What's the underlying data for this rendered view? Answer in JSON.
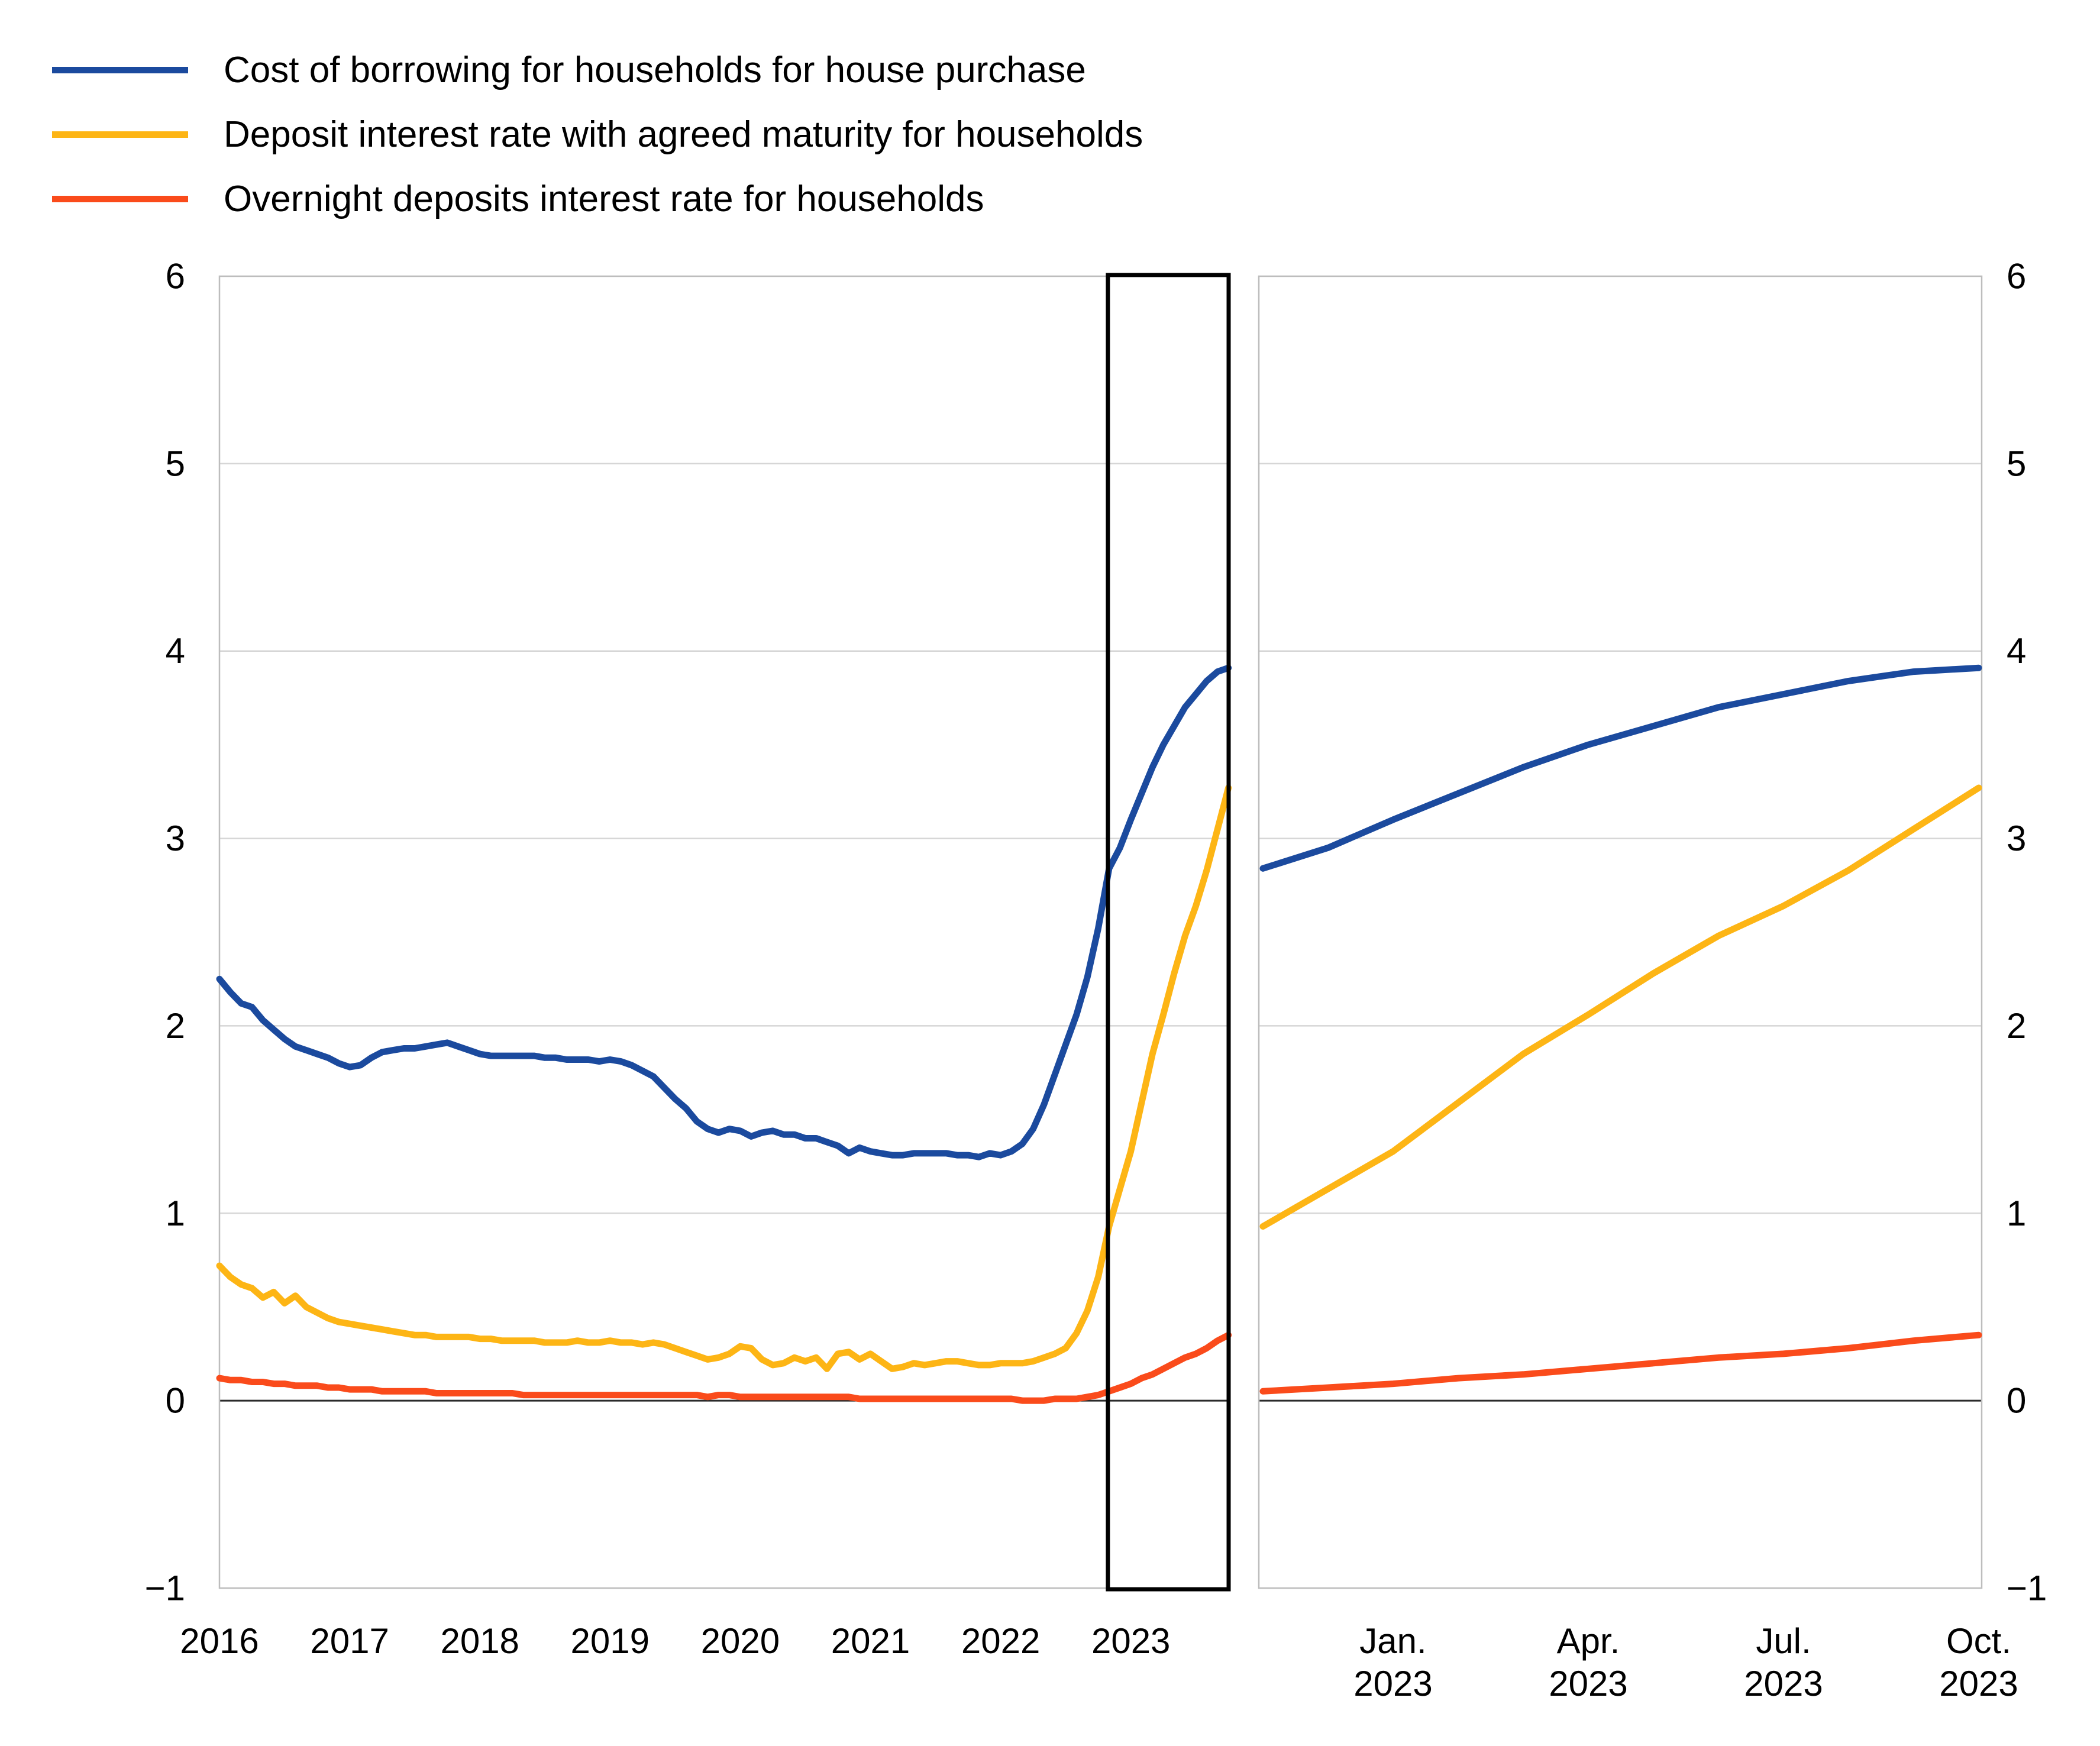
{
  "legend": {
    "items": [
      {
        "label": "Cost of borrowing for households for house purchase",
        "color": "#1b4a9e",
        "icon": "line-swatch"
      },
      {
        "label": "Deposit interest rate with agreed maturity for households",
        "color": "#fdb515",
        "icon": "line-swatch"
      },
      {
        "label": "Overnight deposits interest rate for households",
        "color": "#fa4b1b",
        "icon": "line-swatch"
      }
    ]
  },
  "chart_data": {
    "type": "line",
    "title": "",
    "xlabel": "",
    "ylabel": "",
    "ylim": [
      -1,
      6
    ],
    "yticks": [
      6,
      5,
      4,
      3,
      2,
      1,
      0,
      -1
    ],
    "grid": "horizontal",
    "legend_position": "top-left",
    "colors": {
      "grid": "#d6d6d6",
      "border": "#bdbdbd",
      "zero_line": "#2b2b2b",
      "highlight_box": "#000000"
    },
    "panels": [
      {
        "name": "history-2016-2023",
        "x_tick_labels": [
          "2016",
          "2017",
          "2018",
          "2019",
          "2020",
          "2021",
          "2022",
          "2023"
        ],
        "months_start": "2016-01",
        "months_end": "2023-10",
        "highlight_box": {
          "from": "Nov. 2022",
          "to": "Oct. 2023"
        },
        "series": [
          {
            "name": "Cost of borrowing for households for house purchase",
            "color": "#1b4a9e",
            "values": [
              2.25,
              2.18,
              2.12,
              2.1,
              2.03,
              1.98,
              1.93,
              1.89,
              1.87,
              1.85,
              1.83,
              1.8,
              1.78,
              1.79,
              1.83,
              1.86,
              1.87,
              1.88,
              1.88,
              1.89,
              1.9,
              1.91,
              1.89,
              1.87,
              1.85,
              1.84,
              1.84,
              1.84,
              1.84,
              1.84,
              1.83,
              1.83,
              1.82,
              1.82,
              1.82,
              1.81,
              1.82,
              1.81,
              1.79,
              1.76,
              1.73,
              1.67,
              1.61,
              1.56,
              1.49,
              1.45,
              1.43,
              1.45,
              1.44,
              1.41,
              1.43,
              1.44,
              1.42,
              1.42,
              1.4,
              1.4,
              1.38,
              1.36,
              1.32,
              1.35,
              1.33,
              1.32,
              1.31,
              1.31,
              1.32,
              1.32,
              1.32,
              1.32,
              1.31,
              1.31,
              1.3,
              1.32,
              1.31,
              1.33,
              1.37,
              1.45,
              1.58,
              1.74,
              1.9,
              2.06,
              2.26,
              2.52,
              2.84,
              2.95,
              3.1,
              3.24,
              3.38,
              3.5,
              3.6,
              3.7,
              3.77,
              3.84,
              3.89,
              3.91
            ]
          },
          {
            "name": "Deposit interest rate with agreed maturity for households",
            "color": "#fdb515",
            "values": [
              0.72,
              0.66,
              0.62,
              0.6,
              0.55,
              0.58,
              0.52,
              0.56,
              0.5,
              0.47,
              0.44,
              0.42,
              0.41,
              0.4,
              0.39,
              0.38,
              0.37,
              0.36,
              0.35,
              0.35,
              0.34,
              0.34,
              0.34,
              0.34,
              0.33,
              0.33,
              0.32,
              0.32,
              0.32,
              0.32,
              0.31,
              0.31,
              0.31,
              0.32,
              0.31,
              0.31,
              0.32,
              0.31,
              0.31,
              0.3,
              0.31,
              0.3,
              0.28,
              0.26,
              0.24,
              0.22,
              0.23,
              0.25,
              0.29,
              0.28,
              0.22,
              0.19,
              0.2,
              0.23,
              0.21,
              0.23,
              0.17,
              0.25,
              0.26,
              0.22,
              0.25,
              0.21,
              0.17,
              0.18,
              0.2,
              0.19,
              0.2,
              0.21,
              0.21,
              0.2,
              0.19,
              0.19,
              0.2,
              0.2,
              0.2,
              0.21,
              0.23,
              0.25,
              0.28,
              0.36,
              0.48,
              0.66,
              0.93,
              1.13,
              1.33,
              1.59,
              1.85,
              2.06,
              2.28,
              2.48,
              2.64,
              2.83,
              3.05,
              3.27
            ]
          },
          {
            "name": "Overnight deposits interest rate for households",
            "color": "#fa4b1b",
            "values": [
              0.12,
              0.11,
              0.11,
              0.1,
              0.1,
              0.09,
              0.09,
              0.08,
              0.08,
              0.08,
              0.07,
              0.07,
              0.06,
              0.06,
              0.06,
              0.05,
              0.05,
              0.05,
              0.05,
              0.05,
              0.04,
              0.04,
              0.04,
              0.04,
              0.04,
              0.04,
              0.04,
              0.04,
              0.03,
              0.03,
              0.03,
              0.03,
              0.03,
              0.03,
              0.03,
              0.03,
              0.03,
              0.03,
              0.03,
              0.03,
              0.03,
              0.03,
              0.03,
              0.03,
              0.03,
              0.02,
              0.03,
              0.03,
              0.02,
              0.02,
              0.02,
              0.02,
              0.02,
              0.02,
              0.02,
              0.02,
              0.02,
              0.02,
              0.02,
              0.01,
              0.01,
              0.01,
              0.01,
              0.01,
              0.01,
              0.01,
              0.01,
              0.01,
              0.01,
              0.01,
              0.01,
              0.01,
              0.01,
              0.01,
              0.0,
              0.0,
              0.0,
              0.01,
              0.01,
              0.01,
              0.02,
              0.03,
              0.05,
              0.07,
              0.09,
              0.12,
              0.14,
              0.17,
              0.2,
              0.23,
              0.25,
              0.28,
              0.32,
              0.35
            ]
          }
        ]
      },
      {
        "name": "zoom-nov2022-oct2023",
        "x_tick_labels": [
          [
            "Jan.",
            "2023"
          ],
          [
            "Apr.",
            "2023"
          ],
          [
            "Jul.",
            "2023"
          ],
          [
            "Oct.",
            "2023"
          ]
        ],
        "months_start": "2022-11",
        "months_end": "2023-10",
        "series": [
          {
            "name": "Cost of borrowing for households for house purchase",
            "color": "#1b4a9e",
            "values": [
              2.84,
              2.95,
              3.1,
              3.24,
              3.38,
              3.5,
              3.6,
              3.7,
              3.77,
              3.84,
              3.89,
              3.91
            ]
          },
          {
            "name": "Deposit interest rate with agreed maturity for households",
            "color": "#fdb515",
            "values": [
              0.93,
              1.13,
              1.33,
              1.59,
              1.85,
              2.06,
              2.28,
              2.48,
              2.64,
              2.83,
              3.05,
              3.27
            ]
          },
          {
            "name": "Overnight deposits interest rate for households",
            "color": "#fa4b1b",
            "values": [
              0.05,
              0.07,
              0.09,
              0.12,
              0.14,
              0.17,
              0.2,
              0.23,
              0.25,
              0.28,
              0.32,
              0.35
            ]
          }
        ]
      }
    ]
  }
}
